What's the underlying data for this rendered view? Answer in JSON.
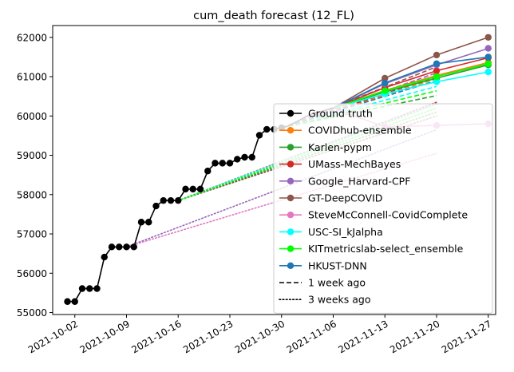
{
  "chart_data": {
    "type": "line",
    "title": "cum_death forecast (12_FL)",
    "xlabel": "",
    "ylabel": "",
    "xlim": [
      "2021-09-29",
      "2021-11-28"
    ],
    "ylim": [
      54950,
      62300
    ],
    "x_ticks": [
      "2021-10-02",
      "2021-10-09",
      "2021-10-16",
      "2021-10-23",
      "2021-10-30",
      "2021-11-06",
      "2021-11-13",
      "2021-11-20",
      "2021-11-27"
    ],
    "y_ticks": [
      55000,
      56000,
      57000,
      58000,
      59000,
      60000,
      61000,
      62000
    ],
    "legend_position": "lower-right",
    "legend": [
      {
        "label": "Ground truth",
        "color": "#000000",
        "style": "solid-marker"
      },
      {
        "label": "COVIDhub-ensemble",
        "color": "#ff7f0e",
        "style": "solid-marker"
      },
      {
        "label": "Karlen-pypm",
        "color": "#2ca02c",
        "style": "solid-marker"
      },
      {
        "label": "UMass-MechBayes",
        "color": "#d62728",
        "style": "solid-marker"
      },
      {
        "label": "Google_Harvard-CPF",
        "color": "#9467bd",
        "style": "solid-marker"
      },
      {
        "label": "GT-DeepCOVID",
        "color": "#8c564b",
        "style": "solid-marker"
      },
      {
        "label": "SteveMcConnell-CovidComplete",
        "color": "#e377c2",
        "style": "solid-marker"
      },
      {
        "label": "USC-SI_kJalpha",
        "color": "#00ffff",
        "style": "solid-marker"
      },
      {
        "label": "KITmetricslab-select_ensemble",
        "color": "#00ff00",
        "style": "solid-marker"
      },
      {
        "label": "HKUST-DNN",
        "color": "#1f77b4",
        "style": "solid-marker"
      },
      {
        "label": "1 week ago",
        "color": "#000000",
        "style": "dashed"
      },
      {
        "label": "3 weeks ago",
        "color": "#000000",
        "style": "dotted"
      }
    ],
    "ground_truth": {
      "x": [
        "2021-10-01",
        "2021-10-02",
        "2021-10-03",
        "2021-10-04",
        "2021-10-05",
        "2021-10-06",
        "2021-10-07",
        "2021-10-08",
        "2021-10-09",
        "2021-10-10",
        "2021-10-11",
        "2021-10-12",
        "2021-10-13",
        "2021-10-14",
        "2021-10-15",
        "2021-10-16",
        "2021-10-17",
        "2021-10-18",
        "2021-10-19",
        "2021-10-20",
        "2021-10-21",
        "2021-10-22",
        "2021-10-23",
        "2021-10-24",
        "2021-10-25",
        "2021-10-26",
        "2021-10-27",
        "2021-10-28",
        "2021-10-29",
        "2021-10-30",
        "2021-10-31",
        "2021-11-01",
        "2021-11-02",
        "2021-11-03",
        "2021-11-04",
        "2021-11-05",
        "2021-11-06"
      ],
      "y": [
        55280,
        55280,
        55610,
        55610,
        55610,
        56410,
        56670,
        56670,
        56670,
        56670,
        57300,
        57300,
        57710,
        57850,
        57850,
        57850,
        58140,
        58140,
        58140,
        58600,
        58800,
        58800,
        58800,
        58900,
        58950,
        58950,
        59510,
        59660,
        59660,
        59700,
        59750,
        59850,
        59950,
        60050,
        60100,
        60150,
        60200
      ]
    },
    "forecasts_current": [
      {
        "model": "COVIDhub-ensemble",
        "color": "#ff7f0e",
        "x": [
          "2021-11-06",
          "2021-11-13",
          "2021-11-20",
          "2021-11-27"
        ],
        "y": [
          60200,
          60650,
          61030,
          61360
        ]
      },
      {
        "model": "Karlen-pypm",
        "color": "#2ca02c",
        "x": [
          "2021-11-06",
          "2021-11-13",
          "2021-11-20",
          "2021-11-27"
        ],
        "y": [
          60200,
          60610,
          60960,
          61300
        ]
      },
      {
        "model": "UMass-MechBayes",
        "color": "#d62728",
        "x": [
          "2021-11-06",
          "2021-11-13",
          "2021-11-20",
          "2021-11-27"
        ],
        "y": [
          60200,
          60720,
          61150,
          61480
        ]
      },
      {
        "model": "Google_Harvard-CPF",
        "color": "#9467bd",
        "x": [
          "2021-11-06",
          "2021-11-13",
          "2021-11-20",
          "2021-11-27"
        ],
        "y": [
          60200,
          60820,
          61300,
          61720
        ]
      },
      {
        "model": "GT-DeepCOVID",
        "color": "#8c564b",
        "x": [
          "2021-11-06",
          "2021-11-13",
          "2021-11-20",
          "2021-11-27"
        ],
        "y": [
          60200,
          60960,
          61550,
          62000
        ]
      },
      {
        "model": "SteveMcConnell-CovidComplete",
        "color": "#e377c2",
        "x": [
          "2021-11-06",
          "2021-11-13",
          "2021-11-20",
          "2021-11-27"
        ],
        "y": [
          60200,
          59720,
          59760,
          59800
        ]
      },
      {
        "model": "USC-SI_kJalpha",
        "color": "#00ffff",
        "x": [
          "2021-11-06",
          "2021-11-13",
          "2021-11-20",
          "2021-11-27"
        ],
        "y": [
          60200,
          60560,
          60870,
          61120
        ]
      },
      {
        "model": "KITmetricslab-select_ensemble",
        "color": "#00ff00",
        "x": [
          "2021-11-06",
          "2021-11-13",
          "2021-11-20",
          "2021-11-27"
        ],
        "y": [
          60200,
          60640,
          61000,
          61330
        ]
      },
      {
        "model": "HKUST-DNN",
        "color": "#1f77b4",
        "x": [
          "2021-11-06",
          "2021-11-13",
          "2021-11-20",
          "2021-11-27"
        ],
        "y": [
          60200,
          60840,
          61330,
          61500
        ]
      }
    ],
    "forecasts_1_week_ago": [
      {
        "model": "COVIDhub-ensemble",
        "color": "#ff7f0e",
        "x": [
          "2021-10-30",
          "2021-11-20"
        ],
        "y": [
          59700,
          60950
        ]
      },
      {
        "model": "Karlen-pypm",
        "color": "#2ca02c",
        "x": [
          "2021-10-30",
          "2021-11-20"
        ],
        "y": [
          59700,
          60520
        ]
      },
      {
        "model": "UMass-MechBayes",
        "color": "#d62728",
        "x": [
          "2021-10-30",
          "2021-11-20"
        ],
        "y": [
          59700,
          61000
        ]
      },
      {
        "model": "Google_Harvard-CPF",
        "color": "#9467bd",
        "x": [
          "2021-10-30",
          "2021-11-20"
        ],
        "y": [
          59700,
          61100
        ]
      },
      {
        "model": "GT-DeepCOVID",
        "color": "#8c564b",
        "x": [
          "2021-10-30",
          "2021-11-20"
        ],
        "y": [
          59700,
          61250
        ]
      },
      {
        "model": "USC-SI_kJalpha",
        "color": "#00ffff",
        "x": [
          "2021-10-30",
          "2021-11-20"
        ],
        "y": [
          59700,
          60750
        ]
      },
      {
        "model": "KITmetricslab-select_ensemble",
        "color": "#00ff00",
        "x": [
          "2021-10-30",
          "2021-11-20"
        ],
        "y": [
          59700,
          60640
        ]
      },
      {
        "model": "HKUST-DNN",
        "color": "#1f77b4",
        "x": [
          "2021-10-30",
          "2021-11-20"
        ],
        "y": [
          59700,
          60900
        ]
      }
    ],
    "forecasts_3_weeks_ago": [
      {
        "model": "COVIDhub-ensemble",
        "color": "#ff7f0e",
        "x": [
          "2021-10-16",
          "2021-11-20"
        ],
        "y": [
          57850,
          60300
        ]
      },
      {
        "model": "Karlen-pypm",
        "color": "#2ca02c",
        "x": [
          "2021-10-16",
          "2021-11-20"
        ],
        "y": [
          57850,
          60100
        ]
      },
      {
        "model": "UMass-MechBayes",
        "color": "#d62728",
        "x": [
          "2021-10-16",
          "2021-11-20"
        ],
        "y": [
          57850,
          60350
        ]
      },
      {
        "model": "Google_Harvard-CPF",
        "color": "#9467bd",
        "x": [
          "2021-10-09",
          "2021-11-20"
        ],
        "y": [
          56670,
          59650
        ]
      },
      {
        "model": "GT-DeepCOVID",
        "color": "#8c564b",
        "x": [
          "2021-10-16",
          "2021-11-20"
        ],
        "y": [
          57850,
          60000
        ]
      },
      {
        "model": "SteveMcConnell-CovidComplete",
        "color": "#e377c2",
        "x": [
          "2021-10-09",
          "2021-11-20"
        ],
        "y": [
          56670,
          59050
        ]
      },
      {
        "model": "USC-SI_kJalpha",
        "color": "#00ffff",
        "x": [
          "2021-10-16",
          "2021-11-20"
        ],
        "y": [
          57850,
          60320
        ]
      },
      {
        "model": "KITmetricslab-select_ensemble",
        "color": "#00ff00",
        "x": [
          "2021-10-16",
          "2021-11-20"
        ],
        "y": [
          57850,
          60200
        ]
      }
    ]
  }
}
